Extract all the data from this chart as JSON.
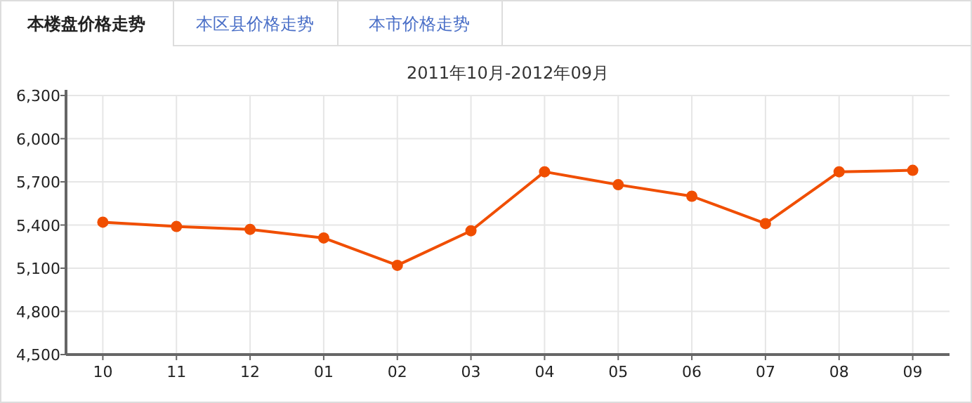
{
  "chart_data": {
    "type": "line",
    "title": "2011年10月-2012年09月",
    "annotations": [
      "本楼盘价格走势",
      "本区县价格走势",
      "本市价格走势"
    ],
    "categories": [
      "10",
      "11",
      "12",
      "01",
      "02",
      "03",
      "04",
      "05",
      "06",
      "07",
      "08",
      "09"
    ],
    "series": [
      {
        "color": "#f04e00",
        "values": [
          5420,
          5390,
          5370,
          5310,
          5120,
          5360,
          5770,
          5680,
          5600,
          5410,
          5770,
          5780
        ]
      }
    ],
    "ylim": [
      4500,
      6300
    ],
    "yticks": [
      {
        "value": 4500,
        "label": "4,500"
      },
      {
        "value": 4800,
        "label": "4,800"
      },
      {
        "value": 5100,
        "label": "5,100"
      },
      {
        "value": 5400,
        "label": "5,400"
      },
      {
        "value": 5700,
        "label": "5,700"
      },
      {
        "value": 6000,
        "label": "6,000"
      },
      {
        "value": 6300,
        "label": "6,300"
      }
    ],
    "grid": true,
    "marker": "circle",
    "line_style": "solid"
  }
}
